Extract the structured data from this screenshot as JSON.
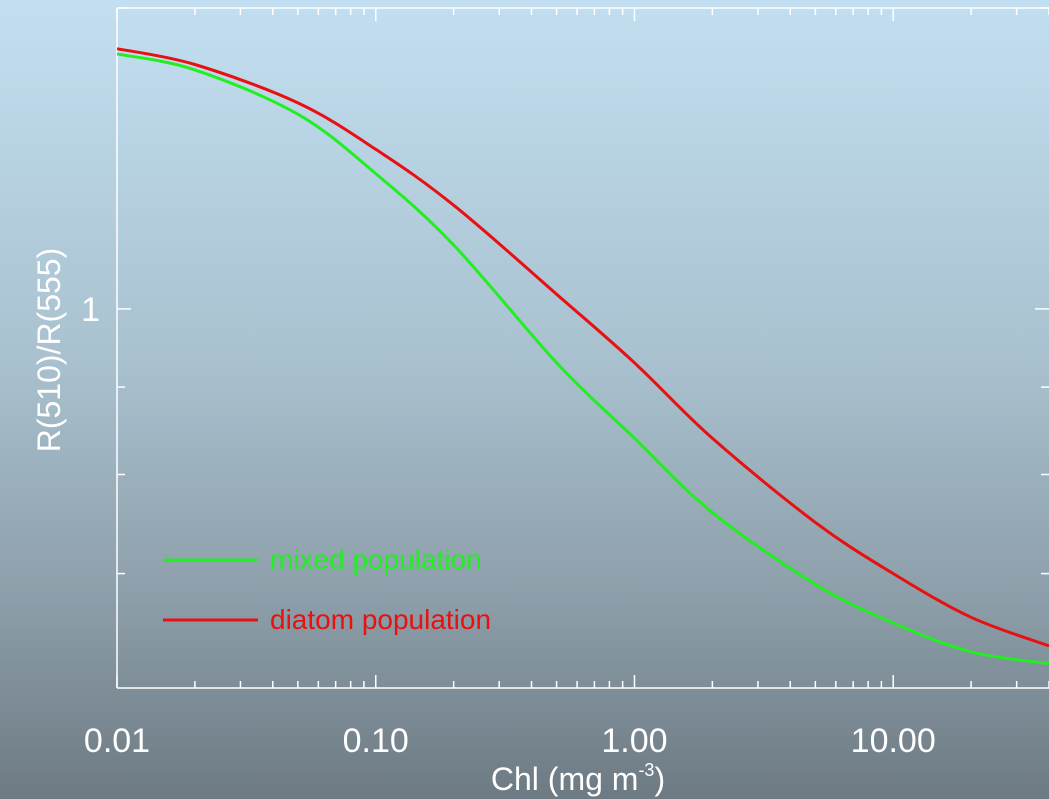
{
  "chart_data": {
    "type": "line",
    "title": "",
    "xlabel": "Chl (mg m",
    "xlabel_sup": "-3",
    "xlabel_close": ")",
    "ylabel": "R(510)/R(555)",
    "x_scale": "log",
    "y_scale": "log",
    "xlim": [
      0.01,
      40
    ],
    "ylim": [
      0.6,
      1.5
    ],
    "x_ticks": [
      {
        "value": 0.01,
        "label": "0.01"
      },
      {
        "value": 0.1,
        "label": "0.10"
      },
      {
        "value": 1,
        "label": "1.00"
      },
      {
        "value": 10,
        "label": "10.00"
      }
    ],
    "y_ticks": [
      {
        "value": 1,
        "label": "1"
      }
    ],
    "legend_position": "bottom-left",
    "grid": false,
    "series": [
      {
        "name": "mixed population",
        "color": "#22ee22",
        "x": [
          0.01,
          0.02,
          0.05,
          0.1,
          0.2,
          0.5,
          1,
          2,
          5,
          10,
          20,
          40
        ],
        "y": [
          1.41,
          1.38,
          1.3,
          1.2,
          1.09,
          0.93,
          0.84,
          0.76,
          0.69,
          0.655,
          0.63,
          0.62
        ]
      },
      {
        "name": "diatom population",
        "color": "#e81010",
        "x": [
          0.01,
          0.02,
          0.05,
          0.1,
          0.2,
          0.5,
          1,
          2,
          5,
          10,
          20,
          40
        ],
        "y": [
          1.42,
          1.39,
          1.32,
          1.24,
          1.15,
          1.02,
          0.93,
          0.84,
          0.75,
          0.7,
          0.66,
          0.635
        ]
      }
    ]
  }
}
